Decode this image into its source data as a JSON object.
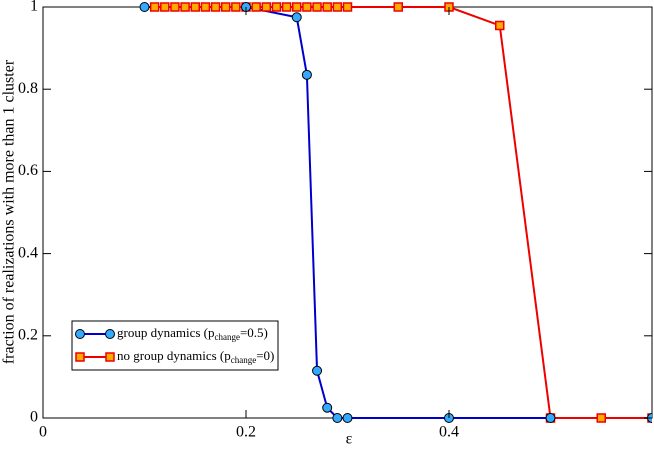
{
  "chart_data": {
    "type": "line",
    "x_label": "ε",
    "y_label": "fraction of realizations with more than 1 cluster",
    "xlim": [
      0,
      0.6
    ],
    "xticks": [
      0,
      0.2,
      0.4
    ],
    "ylim": [
      0,
      1
    ],
    "yticks": [
      0,
      0.2,
      0.4,
      0.6,
      0.8,
      1
    ],
    "legend": "lower left",
    "series": [
      {
        "name": [
          "group dynamics (p",
          "change",
          "=0.5)"
        ],
        "color": "#0000cc",
        "marker_color": "#33aaff",
        "marker": "circle",
        "x": [
          0.1,
          0.2,
          0.25,
          0.26,
          0.27,
          0.28,
          0.29,
          0.3,
          0.4,
          0.5,
          0.6
        ],
        "values": [
          1,
          1,
          0.975,
          0.835,
          0.115,
          0.025,
          0,
          0,
          0,
          0,
          0
        ]
      },
      {
        "name": [
          "no group dynamics (p",
          "change",
          "=0)"
        ],
        "color": "#ee0000",
        "marker_color": "#ffaa00",
        "marker": "square",
        "x": [
          0.11,
          0.12,
          0.13,
          0.14,
          0.15,
          0.16,
          0.17,
          0.18,
          0.19,
          0.2,
          0.21,
          0.22,
          0.23,
          0.24,
          0.25,
          0.26,
          0.27,
          0.28,
          0.29,
          0.3,
          0.35,
          0.4,
          0.45,
          0.5,
          0.55,
          0.6
        ],
        "values": [
          1,
          1,
          1,
          1,
          1,
          1,
          1,
          1,
          1,
          1,
          1,
          1,
          1,
          1,
          1,
          1,
          1,
          1,
          1,
          1,
          1,
          1,
          0.955,
          0,
          0,
          0
        ]
      }
    ]
  }
}
